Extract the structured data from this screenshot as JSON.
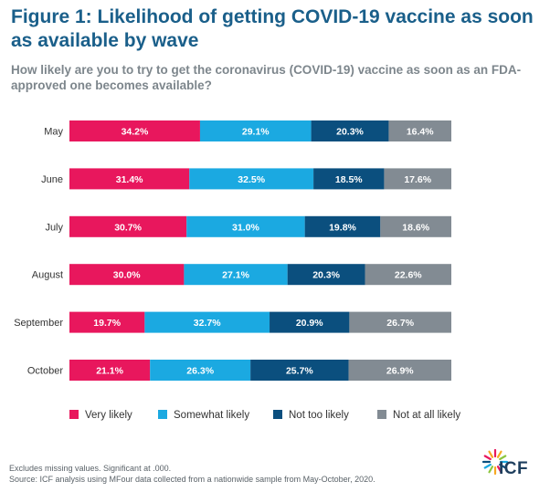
{
  "header": {
    "title": "Figure 1: Likelihood of getting COVID-19 vaccine as soon as available by wave",
    "subtitle": "How likely are you to try to get the coronavirus (COVID-19) vaccine as soon as an FDA-approved one becomes available?"
  },
  "chart_data": {
    "type": "bar",
    "orientation": "horizontal",
    "stacked": true,
    "normalized_percent": true,
    "title": "Figure 1: Likelihood of getting COVID-19 vaccine as soon as available by wave",
    "categories": [
      "May",
      "June",
      "July",
      "August",
      "September",
      "October"
    ],
    "series": [
      {
        "name": "Very likely",
        "color": "#e8175d",
        "values": [
          34.2,
          31.4,
          30.7,
          30.0,
          19.7,
          21.1
        ],
        "labels": [
          "34.2%",
          "31.4%",
          "30.7%",
          "30.0%",
          "19.7%",
          "21.1%"
        ]
      },
      {
        "name": "Somewhat likely",
        "color": "#1ba9e1",
        "values": [
          29.1,
          32.5,
          31.0,
          27.1,
          32.7,
          26.3
        ],
        "labels": [
          "29.1%",
          "32.5%",
          "31.0%",
          "27.1%",
          "32.7%",
          "26.3%"
        ]
      },
      {
        "name": "Not too likely",
        "color": "#0b4f7e",
        "values": [
          20.3,
          18.5,
          19.8,
          20.3,
          20.9,
          25.7
        ],
        "labels": [
          "20.3%",
          "18.5%",
          "19.8%",
          "20.3%",
          "20.9%",
          "25.7%"
        ]
      },
      {
        "name": "Not at all likely",
        "color": "#828b93",
        "values": [
          16.4,
          17.6,
          18.6,
          22.6,
          26.7,
          26.9
        ],
        "labels": [
          "16.4%",
          "17.6%",
          "18.6%",
          "22.6%",
          "26.7%",
          "26.9%"
        ]
      }
    ],
    "legend_position": "bottom",
    "grid": false
  },
  "footer": {
    "note": "Excludes missing values. Significant at .000.",
    "source": "Source: ICF analysis using MFour data collected from a nationwide sample from May-October, 2020."
  },
  "logo": {
    "text": "ICF",
    "colors": [
      "#e8175d",
      "#f7a823",
      "#8dc63f",
      "#1ba9e1",
      "#0b4f7e"
    ]
  }
}
